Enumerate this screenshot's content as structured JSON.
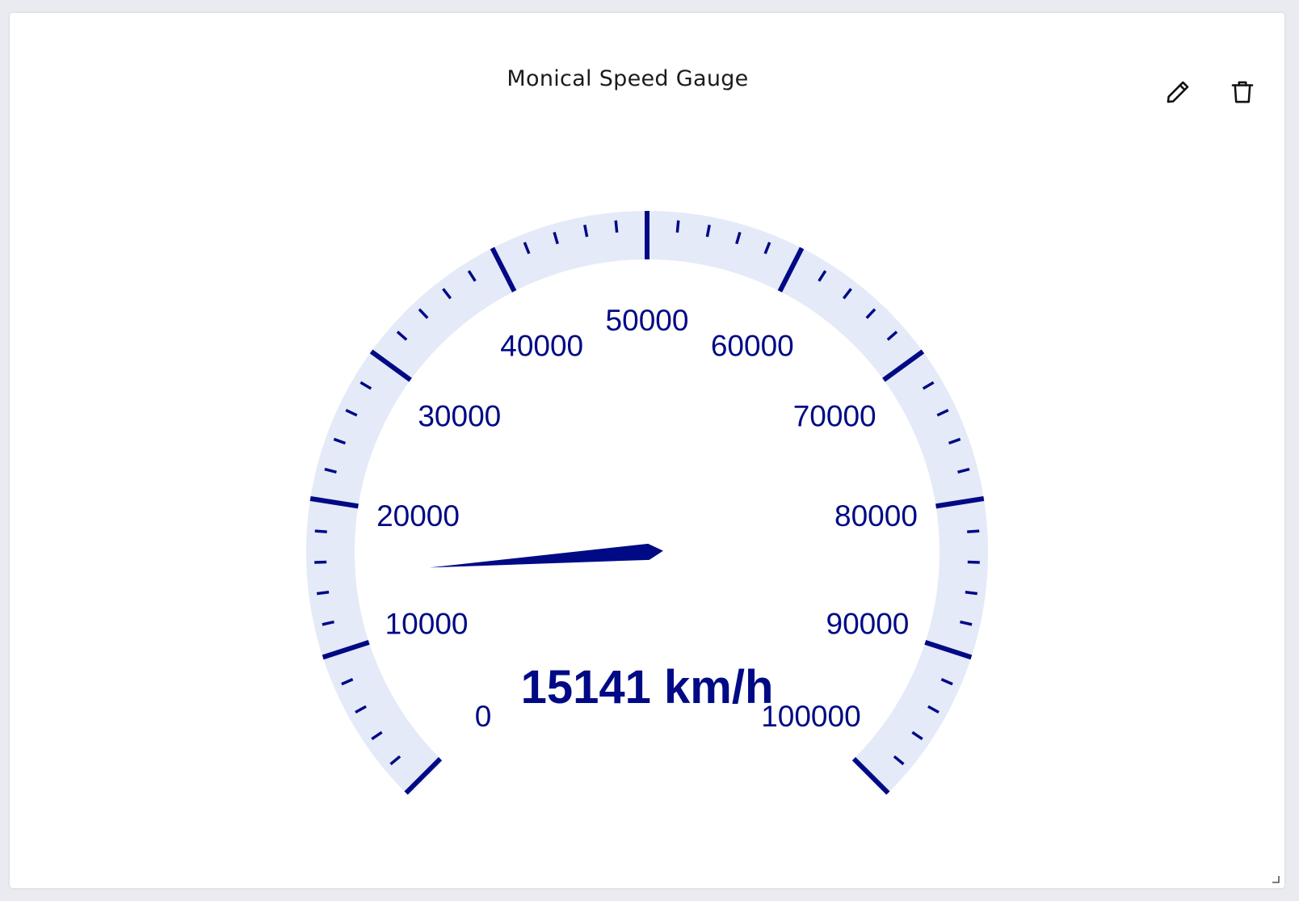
{
  "widget": {
    "title": "Monical Speed Gauge",
    "edit_icon": "pencil-icon",
    "delete_icon": "trash-icon",
    "resize_icon": "resize-handle-icon"
  },
  "chart_data": {
    "type": "gauge",
    "value": 15141,
    "unit": "km/h",
    "readout": "15141 km/h",
    "min": 0,
    "max": 100000,
    "major_ticks": [
      0,
      10000,
      20000,
      30000,
      40000,
      50000,
      60000,
      70000,
      80000,
      90000,
      100000
    ],
    "major_labels": [
      "0",
      "10000",
      "20000",
      "30000",
      "40000",
      "50000",
      "60000",
      "70000",
      "80000",
      "90000",
      "100000"
    ],
    "minor_ticks_per_major": 5,
    "colors": {
      "accent": "#000a85",
      "band": "#e4eaf7"
    }
  }
}
